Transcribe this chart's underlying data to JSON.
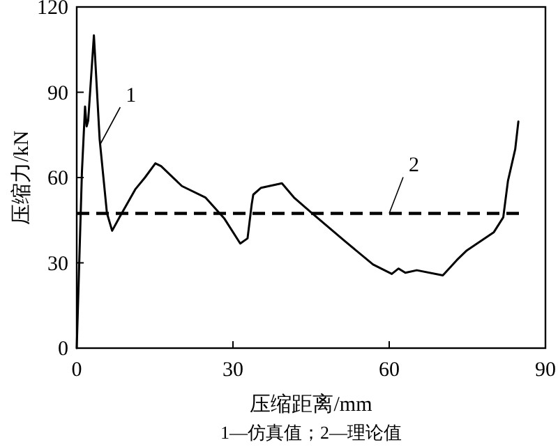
{
  "chart_data": {
    "type": "line",
    "xlabel": "压缩距离/mm",
    "ylabel": "压缩力/kN",
    "xlim": [
      0,
      90
    ],
    "ylim": [
      0,
      120
    ],
    "xticks": [
      0,
      30,
      60,
      90
    ],
    "yticks": [
      0,
      30,
      60,
      90,
      120
    ],
    "series": [
      {
        "color": "#000000",
        "line_style": "solid",
        "x": [
          0,
          1.0,
          1.6,
          1.9,
          2.2,
          3.3,
          4.4,
          5.8,
          6.8,
          8.2,
          11.3,
          13.1,
          15.1,
          16.2,
          20.2,
          24.7,
          28.3,
          31.4,
          32.8,
          33.6,
          33.9,
          35.4,
          39.4,
          41.7,
          45.2,
          51.5,
          56.9,
          60.5,
          61.8,
          63.1,
          65.3,
          70.3,
          73.0,
          74.8,
          80.1,
          81.9,
          82.8,
          84.2,
          84.8
        ],
        "values": [
          0,
          62,
          85,
          78,
          80,
          110,
          73.5,
          47.5,
          41.3,
          46,
          56,
          60,
          65,
          64,
          57,
          53,
          45.7,
          36.8,
          38.6,
          50.6,
          54,
          56.4,
          58,
          53,
          47.4,
          37.6,
          29.4,
          26.1,
          28,
          26.5,
          27.4,
          25.6,
          31,
          34.2,
          40.8,
          46,
          58.8,
          70,
          79.7
        ]
      },
      {
        "color": "#000000",
        "line_style": "dashed",
        "x": [
          0,
          85
        ],
        "values": [
          47.4,
          47.4
        ]
      }
    ],
    "annotations": [
      {
        "text": "1",
        "x": 4.6,
        "y": 72
      },
      {
        "text": "2",
        "x": 60,
        "y": 47.4
      },
      "1—仿真值；2—理论值"
    ]
  }
}
